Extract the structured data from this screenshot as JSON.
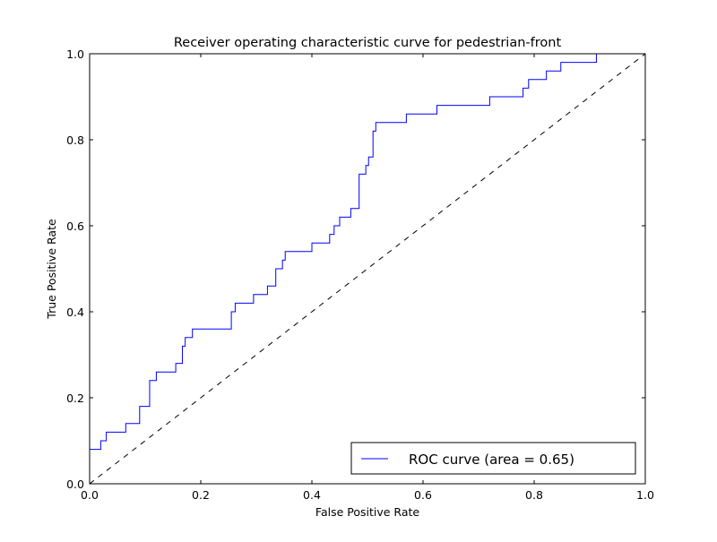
{
  "chart_data": {
    "type": "line",
    "title": "Receiver operating characteristic curve for pedestrian-front",
    "xlabel": "False Positive Rate",
    "ylabel": "True Positive Rate",
    "xlim": [
      0.0,
      1.0
    ],
    "ylim": [
      0.0,
      1.0
    ],
    "x_ticks": [
      "0.0",
      "0.2",
      "0.4",
      "0.6",
      "0.8",
      "1.0"
    ],
    "y_ticks": [
      "0.0",
      "0.2",
      "0.4",
      "0.6",
      "0.8",
      "1.0"
    ],
    "grid": false,
    "legend_position": "lower-right",
    "series": [
      {
        "name": "ROC curve (area = 0.65)",
        "color": "#0000ff",
        "style": "step",
        "points": [
          [
            0.0,
            0.0
          ],
          [
            0.0,
            0.08
          ],
          [
            0.02,
            0.08
          ],
          [
            0.02,
            0.1
          ],
          [
            0.03,
            0.1
          ],
          [
            0.03,
            0.12
          ],
          [
            0.065,
            0.12
          ],
          [
            0.065,
            0.14
          ],
          [
            0.09,
            0.14
          ],
          [
            0.09,
            0.18
          ],
          [
            0.108,
            0.18
          ],
          [
            0.108,
            0.24
          ],
          [
            0.12,
            0.24
          ],
          [
            0.12,
            0.26
          ],
          [
            0.155,
            0.26
          ],
          [
            0.155,
            0.28
          ],
          [
            0.167,
            0.28
          ],
          [
            0.167,
            0.32
          ],
          [
            0.172,
            0.32
          ],
          [
            0.172,
            0.34
          ],
          [
            0.185,
            0.34
          ],
          [
            0.185,
            0.36
          ],
          [
            0.255,
            0.36
          ],
          [
            0.255,
            0.4
          ],
          [
            0.262,
            0.4
          ],
          [
            0.262,
            0.42
          ],
          [
            0.295,
            0.42
          ],
          [
            0.295,
            0.44
          ],
          [
            0.32,
            0.44
          ],
          [
            0.32,
            0.46
          ],
          [
            0.335,
            0.46
          ],
          [
            0.335,
            0.5
          ],
          [
            0.347,
            0.5
          ],
          [
            0.347,
            0.52
          ],
          [
            0.352,
            0.52
          ],
          [
            0.352,
            0.54
          ],
          [
            0.4,
            0.54
          ],
          [
            0.4,
            0.56
          ],
          [
            0.432,
            0.56
          ],
          [
            0.432,
            0.58
          ],
          [
            0.44,
            0.58
          ],
          [
            0.44,
            0.6
          ],
          [
            0.45,
            0.6
          ],
          [
            0.45,
            0.62
          ],
          [
            0.47,
            0.62
          ],
          [
            0.47,
            0.64
          ],
          [
            0.485,
            0.64
          ],
          [
            0.485,
            0.72
          ],
          [
            0.497,
            0.72
          ],
          [
            0.497,
            0.74
          ],
          [
            0.502,
            0.74
          ],
          [
            0.502,
            0.76
          ],
          [
            0.51,
            0.76
          ],
          [
            0.51,
            0.82
          ],
          [
            0.515,
            0.82
          ],
          [
            0.515,
            0.84
          ],
          [
            0.57,
            0.84
          ],
          [
            0.57,
            0.86
          ],
          [
            0.625,
            0.86
          ],
          [
            0.625,
            0.88
          ],
          [
            0.72,
            0.88
          ],
          [
            0.72,
            0.9
          ],
          [
            0.78,
            0.9
          ],
          [
            0.78,
            0.92
          ],
          [
            0.79,
            0.92
          ],
          [
            0.79,
            0.94
          ],
          [
            0.822,
            0.94
          ],
          [
            0.822,
            0.96
          ],
          [
            0.848,
            0.96
          ],
          [
            0.848,
            0.98
          ],
          [
            0.912,
            0.98
          ],
          [
            0.912,
            1.0
          ],
          [
            1.0,
            1.0
          ]
        ]
      },
      {
        "name": "",
        "color": "#000000",
        "style": "dashed",
        "points": [
          [
            0.0,
            0.0
          ],
          [
            1.0,
            1.0
          ]
        ]
      }
    ]
  }
}
